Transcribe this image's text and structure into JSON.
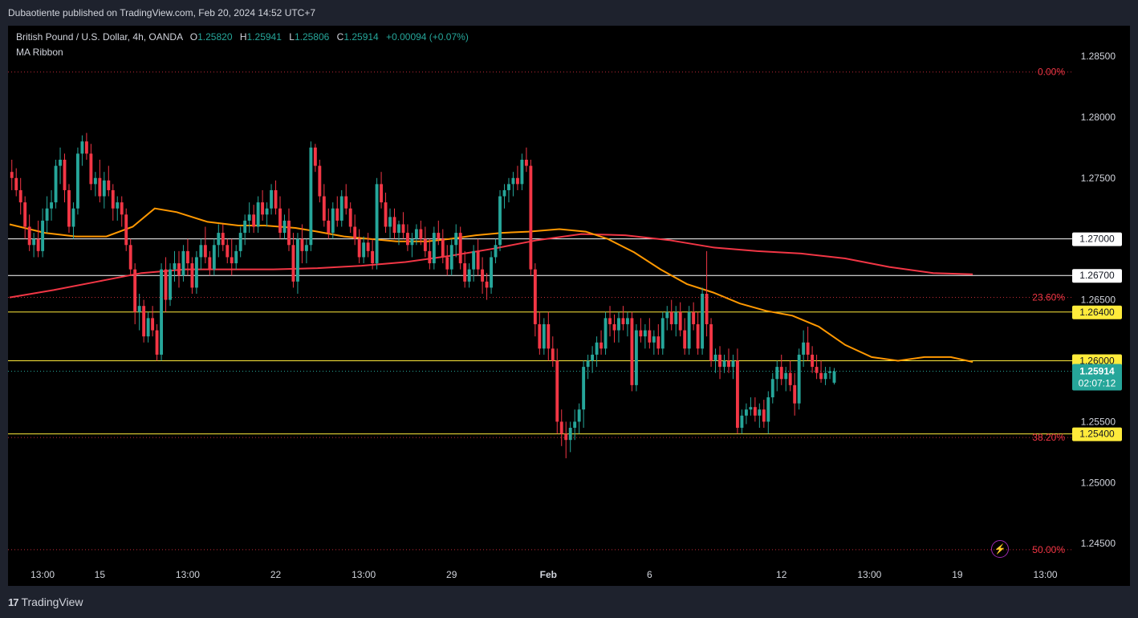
{
  "header": {
    "publisher": "Dubaotiente published on TradingView.com, Feb 20, 2024 14:52 UTC+7"
  },
  "legend": {
    "symbol": "British Pound / U.S. Dollar, 4h, OANDA",
    "open_label": "O",
    "open": "1.25820",
    "high_label": "H",
    "high": "1.25941",
    "low_label": "L",
    "low": "1.25806",
    "close_label": "C",
    "close": "1.25914",
    "change": "+0.00094 (+0.07%)",
    "indicator": "MA Ribbon"
  },
  "footer": {
    "logo": "17",
    "brand": "TradingView"
  },
  "colors": {
    "up": "#26a69a",
    "down": "#f23645",
    "ma_fast": "#ff9800",
    "ma_slow": "#f23645",
    "fib": "#f23645",
    "level_yellow": "#ffeb3b",
    "level_white": "#ffffff"
  },
  "chart_data": {
    "type": "candlestick",
    "ylim": [
      1.2435,
      1.2875
    ],
    "price_ticks": [
      "1.28500",
      "1.28000",
      "1.27500",
      "1.26500",
      "1.25500",
      "1.25000",
      "1.24500"
    ],
    "time_labels": [
      {
        "label": "13:00",
        "bar": 7
      },
      {
        "label": "15",
        "bar": 20
      },
      {
        "label": "13:00",
        "bar": 40
      },
      {
        "label": "22",
        "bar": 60
      },
      {
        "label": "13:00",
        "bar": 80
      },
      {
        "label": "29",
        "bar": 100
      },
      {
        "label": "Feb",
        "bar": 122,
        "bold": true
      },
      {
        "label": "6",
        "bar": 145
      },
      {
        "label": "12",
        "bar": 175
      },
      {
        "label": "13:00",
        "bar": 195
      },
      {
        "label": "19",
        "bar": 215
      },
      {
        "label": "13:00",
        "bar": 235
      }
    ],
    "horizontal_levels": [
      {
        "price": 1.27,
        "label": "1.27000",
        "style": "white"
      },
      {
        "price": 1.267,
        "label": "1.26700",
        "style": "white"
      },
      {
        "price": 1.264,
        "label": "1.26400",
        "style": "yellow"
      },
      {
        "price": 1.26,
        "label": "1.26000",
        "style": "yellow"
      },
      {
        "price": 1.254,
        "label": "1.25400",
        "style": "yellow"
      }
    ],
    "fib_levels": [
      {
        "price": 1.2837,
        "label": "0.00%"
      },
      {
        "price": 1.2652,
        "label": "23.60%"
      },
      {
        "price": 1.2537,
        "label": "38.20%"
      },
      {
        "price": 1.2445,
        "label": "50.00%"
      }
    ],
    "last_price": {
      "label": "1.25914",
      "countdown": "02:07:12",
      "value": 1.25914
    },
    "ma_fast": [
      [
        0,
        1.2712
      ],
      [
        8,
        1.2705
      ],
      [
        15,
        1.2702
      ],
      [
        22,
        1.2702
      ],
      [
        28,
        1.271
      ],
      [
        33,
        1.2725
      ],
      [
        38,
        1.2722
      ],
      [
        45,
        1.2714
      ],
      [
        52,
        1.2711
      ],
      [
        58,
        1.2711
      ],
      [
        65,
        1.2709
      ],
      [
        70,
        1.2706
      ],
      [
        76,
        1.2702
      ],
      [
        82,
        1.27
      ],
      [
        88,
        1.2698
      ],
      [
        95,
        1.2698
      ],
      [
        100,
        1.27
      ],
      [
        106,
        1.2703
      ],
      [
        112,
        1.2705
      ],
      [
        118,
        1.2706
      ],
      [
        125,
        1.2708
      ],
      [
        131,
        1.2706
      ],
      [
        136,
        1.27
      ],
      [
        142,
        1.2689
      ],
      [
        148,
        1.2675
      ],
      [
        154,
        1.2663
      ],
      [
        160,
        1.2656
      ],
      [
        166,
        1.2647
      ],
      [
        172,
        1.2641
      ],
      [
        178,
        1.2637
      ],
      [
        184,
        1.2628
      ],
      [
        190,
        1.2613
      ],
      [
        196,
        1.2603
      ],
      [
        202,
        1.26
      ],
      [
        208,
        1.2603
      ],
      [
        214,
        1.2603
      ],
      [
        219,
        1.2599
      ]
    ],
    "ma_slow": [
      [
        0,
        1.2652
      ],
      [
        10,
        1.2658
      ],
      [
        20,
        1.2665
      ],
      [
        30,
        1.2672
      ],
      [
        40,
        1.2675
      ],
      [
        50,
        1.2675
      ],
      [
        60,
        1.2675
      ],
      [
        70,
        1.2676
      ],
      [
        80,
        1.2678
      ],
      [
        90,
        1.2681
      ],
      [
        100,
        1.2686
      ],
      [
        110,
        1.2692
      ],
      [
        120,
        1.2699
      ],
      [
        130,
        1.2704
      ],
      [
        140,
        1.2703
      ],
      [
        150,
        1.2699
      ],
      [
        160,
        1.2693
      ],
      [
        170,
        1.269
      ],
      [
        180,
        1.2688
      ],
      [
        190,
        1.2684
      ],
      [
        200,
        1.2677
      ],
      [
        210,
        1.2672
      ],
      [
        219,
        1.2671
      ]
    ],
    "ohlc": [
      [
        1.2755,
        1.2765,
        1.274,
        1.275
      ],
      [
        1.275,
        1.2758,
        1.2735,
        1.274
      ],
      [
        1.274,
        1.275,
        1.272,
        1.273
      ],
      [
        1.273,
        1.2735,
        1.27,
        1.271
      ],
      [
        1.271,
        1.272,
        1.269,
        1.2695
      ],
      [
        1.2695,
        1.2705,
        1.2685,
        1.27
      ],
      [
        1.27,
        1.2715,
        1.2685,
        1.269
      ],
      [
        1.269,
        1.2725,
        1.2685,
        1.2715
      ],
      [
        1.2715,
        1.2735,
        1.2705,
        1.2725
      ],
      [
        1.2725,
        1.274,
        1.2715,
        1.273
      ],
      [
        1.273,
        1.2765,
        1.2725,
        1.276
      ],
      [
        1.276,
        1.2775,
        1.2745,
        1.2765
      ],
      [
        1.2765,
        1.277,
        1.273,
        1.274
      ],
      [
        1.274,
        1.2745,
        1.2705,
        1.271
      ],
      [
        1.271,
        1.273,
        1.27,
        1.2725
      ],
      [
        1.2725,
        1.2775,
        1.272,
        1.277
      ],
      [
        1.277,
        1.2785,
        1.276,
        1.278
      ],
      [
        1.278,
        1.2787,
        1.2765,
        1.277
      ],
      [
        1.277,
        1.2778,
        1.274,
        1.2745
      ],
      [
        1.2745,
        1.2755,
        1.2735,
        1.275
      ],
      [
        1.275,
        1.2765,
        1.273,
        1.2735
      ],
      [
        1.2735,
        1.2755,
        1.2725,
        1.2748
      ],
      [
        1.2748,
        1.276,
        1.2735,
        1.274
      ],
      [
        1.274,
        1.2745,
        1.2715,
        1.2725
      ],
      [
        1.2725,
        1.2735,
        1.2715,
        1.273
      ],
      [
        1.273,
        1.2735,
        1.271,
        1.272
      ],
      [
        1.272,
        1.2725,
        1.269,
        1.2695
      ],
      [
        1.2695,
        1.27,
        1.267,
        1.2675
      ],
      [
        1.2675,
        1.268,
        1.263,
        1.264
      ],
      [
        1.264,
        1.2655,
        1.2625,
        1.2645
      ],
      [
        1.2645,
        1.265,
        1.2615,
        1.262
      ],
      [
        1.262,
        1.264,
        1.2615,
        1.2635
      ],
      [
        1.2635,
        1.2645,
        1.262,
        1.2625
      ],
      [
        1.2625,
        1.263,
        1.26,
        1.2605
      ],
      [
        1.2605,
        1.268,
        1.26,
        1.2675
      ],
      [
        1.2675,
        1.2685,
        1.264,
        1.265
      ],
      [
        1.265,
        1.268,
        1.2645,
        1.2675
      ],
      [
        1.2675,
        1.269,
        1.2665,
        1.268
      ],
      [
        1.268,
        1.269,
        1.266,
        1.267
      ],
      [
        1.267,
        1.2695,
        1.2665,
        1.269
      ],
      [
        1.269,
        1.27,
        1.267,
        1.268
      ],
      [
        1.268,
        1.2685,
        1.2655,
        1.266
      ],
      [
        1.266,
        1.269,
        1.2655,
        1.2685
      ],
      [
        1.2685,
        1.27,
        1.2675,
        1.2695
      ],
      [
        1.2695,
        1.271,
        1.268,
        1.2685
      ],
      [
        1.2685,
        1.269,
        1.267,
        1.2675
      ],
      [
        1.2675,
        1.27,
        1.267,
        1.2695
      ],
      [
        1.2695,
        1.2712,
        1.2685,
        1.2705
      ],
      [
        1.2705,
        1.2712,
        1.269,
        1.2695
      ],
      [
        1.2695,
        1.27,
        1.268,
        1.2685
      ],
      [
        1.2685,
        1.27,
        1.267,
        1.268
      ],
      [
        1.268,
        1.2695,
        1.2675,
        1.269
      ],
      [
        1.269,
        1.271,
        1.2685,
        1.2705
      ],
      [
        1.2705,
        1.272,
        1.2695,
        1.2715
      ],
      [
        1.2715,
        1.273,
        1.2705,
        1.272
      ],
      [
        1.272,
        1.2728,
        1.2705,
        1.271
      ],
      [
        1.271,
        1.2735,
        1.2705,
        1.273
      ],
      [
        1.273,
        1.274,
        1.2715,
        1.272
      ],
      [
        1.272,
        1.273,
        1.271,
        1.2725
      ],
      [
        1.2725,
        1.2745,
        1.272,
        1.274
      ],
      [
        1.274,
        1.2748,
        1.272,
        1.2725
      ],
      [
        1.2725,
        1.2735,
        1.27,
        1.2705
      ],
      [
        1.2705,
        1.272,
        1.27,
        1.2715
      ],
      [
        1.2715,
        1.2725,
        1.269,
        1.2695
      ],
      [
        1.2695,
        1.2705,
        1.266,
        1.2665
      ],
      [
        1.2665,
        1.2705,
        1.2655,
        1.27
      ],
      [
        1.27,
        1.2712,
        1.268,
        1.269
      ],
      [
        1.269,
        1.27,
        1.268,
        1.2695
      ],
      [
        1.2695,
        1.278,
        1.269,
        1.2775
      ],
      [
        1.2775,
        1.2778,
        1.2755,
        1.276
      ],
      [
        1.276,
        1.2765,
        1.273,
        1.2735
      ],
      [
        1.2735,
        1.2745,
        1.271,
        1.2715
      ],
      [
        1.2715,
        1.2725,
        1.27,
        1.2705
      ],
      [
        1.2705,
        1.273,
        1.27,
        1.2725
      ],
      [
        1.2725,
        1.2735,
        1.271,
        1.2715
      ],
      [
        1.2715,
        1.274,
        1.271,
        1.2735
      ],
      [
        1.2735,
        1.2745,
        1.272,
        1.2725
      ],
      [
        1.2725,
        1.273,
        1.2705,
        1.271
      ],
      [
        1.271,
        1.272,
        1.2695,
        1.27
      ],
      [
        1.27,
        1.2708,
        1.268,
        1.2685
      ],
      [
        1.2685,
        1.2702,
        1.268,
        1.2697
      ],
      [
        1.2697,
        1.2705,
        1.2685,
        1.269
      ],
      [
        1.269,
        1.27,
        1.2675,
        1.268
      ],
      [
        1.268,
        1.275,
        1.2675,
        1.2745
      ],
      [
        1.2745,
        1.2755,
        1.2725,
        1.273
      ],
      [
        1.273,
        1.2738,
        1.2705,
        1.271
      ],
      [
        1.271,
        1.2725,
        1.27,
        1.2718
      ],
      [
        1.2718,
        1.2725,
        1.27,
        1.2705
      ],
      [
        1.2705,
        1.2715,
        1.2695,
        1.2712
      ],
      [
        1.2712,
        1.2722,
        1.27,
        1.2705
      ],
      [
        1.2705,
        1.2712,
        1.269,
        1.2695
      ],
      [
        1.2695,
        1.2705,
        1.2685,
        1.27
      ],
      [
        1.27,
        1.2712,
        1.2695,
        1.2708
      ],
      [
        1.2708,
        1.2715,
        1.2695,
        1.27
      ],
      [
        1.27,
        1.271,
        1.2685,
        1.269
      ],
      [
        1.269,
        1.27,
        1.2675,
        1.268
      ],
      [
        1.268,
        1.271,
        1.2675,
        1.2705
      ],
      [
        1.2705,
        1.2715,
        1.2695,
        1.27
      ],
      [
        1.27,
        1.2708,
        1.268,
        1.2685
      ],
      [
        1.2685,
        1.2695,
        1.267,
        1.2675
      ],
      [
        1.2675,
        1.27,
        1.267,
        1.2695
      ],
      [
        1.2695,
        1.2712,
        1.2685,
        1.2705
      ],
      [
        1.2705,
        1.271,
        1.2675,
        1.268
      ],
      [
        1.268,
        1.269,
        1.266,
        1.2665
      ],
      [
        1.2665,
        1.268,
        1.266,
        1.2675
      ],
      [
        1.2675,
        1.2695,
        1.2665,
        1.269
      ],
      [
        1.269,
        1.27,
        1.267,
        1.2675
      ],
      [
        1.2675,
        1.2685,
        1.2655,
        1.2665
      ],
      [
        1.2665,
        1.2672,
        1.265,
        1.266
      ],
      [
        1.266,
        1.269,
        1.2655,
        1.2685
      ],
      [
        1.2685,
        1.27,
        1.268,
        1.2695
      ],
      [
        1.2695,
        1.274,
        1.269,
        1.2735
      ],
      [
        1.2735,
        1.2745,
        1.2725,
        1.274
      ],
      [
        1.274,
        1.275,
        1.273,
        1.2745
      ],
      [
        1.2745,
        1.2755,
        1.2735,
        1.275
      ],
      [
        1.275,
        1.276,
        1.274,
        1.2745
      ],
      [
        1.2745,
        1.277,
        1.274,
        1.2765
      ],
      [
        1.2765,
        1.2775,
        1.2755,
        1.276
      ],
      [
        1.276,
        1.2765,
        1.267,
        1.2675
      ],
      [
        1.2675,
        1.268,
        1.262,
        1.263
      ],
      [
        1.263,
        1.264,
        1.2605,
        1.261
      ],
      [
        1.261,
        1.2635,
        1.2605,
        1.263
      ],
      [
        1.263,
        1.264,
        1.26,
        1.261
      ],
      [
        1.261,
        1.262,
        1.2595,
        1.26
      ],
      [
        1.26,
        1.261,
        1.254,
        1.255
      ],
      [
        1.255,
        1.256,
        1.253,
        1.254
      ],
      [
        1.254,
        1.255,
        1.252,
        1.2535
      ],
      [
        1.2535,
        1.255,
        1.2525,
        1.2545
      ],
      [
        1.2545,
        1.256,
        1.2535,
        1.255
      ],
      [
        1.255,
        1.2565,
        1.254,
        1.256
      ],
      [
        1.256,
        1.26,
        1.2545,
        1.2595
      ],
      [
        1.2595,
        1.2605,
        1.2585,
        1.26
      ],
      [
        1.26,
        1.2612,
        1.259,
        1.2605
      ],
      [
        1.2605,
        1.262,
        1.2595,
        1.2615
      ],
      [
        1.2615,
        1.2625,
        1.2605,
        1.261
      ],
      [
        1.261,
        1.264,
        1.2605,
        1.2635
      ],
      [
        1.2635,
        1.2645,
        1.262,
        1.263
      ],
      [
        1.263,
        1.2638,
        1.2615,
        1.2625
      ],
      [
        1.2625,
        1.264,
        1.2615,
        1.2635
      ],
      [
        1.2635,
        1.2645,
        1.2625,
        1.263
      ],
      [
        1.263,
        1.264,
        1.262,
        1.2635
      ],
      [
        1.2635,
        1.264,
        1.2575,
        1.258
      ],
      [
        1.258,
        1.263,
        1.2575,
        1.2625
      ],
      [
        1.2625,
        1.2635,
        1.2615,
        1.262
      ],
      [
        1.262,
        1.263,
        1.261,
        1.2625
      ],
      [
        1.2625,
        1.2635,
        1.261,
        1.2615
      ],
      [
        1.2615,
        1.2625,
        1.2605,
        1.262
      ],
      [
        1.262,
        1.263,
        1.2605,
        1.261
      ],
      [
        1.261,
        1.264,
        1.2605,
        1.2635
      ],
      [
        1.2635,
        1.2645,
        1.2625,
        1.264
      ],
      [
        1.264,
        1.265,
        1.2625,
        1.263
      ],
      [
        1.263,
        1.2645,
        1.262,
        1.264
      ],
      [
        1.264,
        1.2648,
        1.262,
        1.2625
      ],
      [
        1.2625,
        1.2635,
        1.2605,
        1.261
      ],
      [
        1.261,
        1.2645,
        1.2605,
        1.264
      ],
      [
        1.264,
        1.2648,
        1.2625,
        1.263
      ],
      [
        1.263,
        1.264,
        1.2605,
        1.261
      ],
      [
        1.261,
        1.266,
        1.2605,
        1.2655
      ],
      [
        1.2655,
        1.269,
        1.262,
        1.263
      ],
      [
        1.263,
        1.2635,
        1.2595,
        1.26
      ],
      [
        1.26,
        1.261,
        1.259,
        1.2605
      ],
      [
        1.2605,
        1.2612,
        1.2585,
        1.2595
      ],
      [
        1.2595,
        1.2605,
        1.259,
        1.26
      ],
      [
        1.26,
        1.261,
        1.259,
        1.2595
      ],
      [
        1.2595,
        1.2605,
        1.2585,
        1.26
      ],
      [
        1.26,
        1.261,
        1.254,
        1.2545
      ],
      [
        1.2545,
        1.256,
        1.254,
        1.2555
      ],
      [
        1.2555,
        1.2565,
        1.2548,
        1.256
      ],
      [
        1.256,
        1.257,
        1.2555,
        1.2562
      ],
      [
        1.2562,
        1.257,
        1.255,
        1.2555
      ],
      [
        1.2555,
        1.2565,
        1.2545,
        1.256
      ],
      [
        1.256,
        1.2568,
        1.2545,
        1.255
      ],
      [
        1.255,
        1.2575,
        1.254,
        1.257
      ],
      [
        1.257,
        1.259,
        1.2565,
        1.2585
      ],
      [
        1.2585,
        1.26,
        1.2575,
        1.2595
      ],
      [
        1.2595,
        1.2605,
        1.258,
        1.2585
      ],
      [
        1.2585,
        1.2595,
        1.2575,
        1.259
      ],
      [
        1.259,
        1.26,
        1.2575,
        1.258
      ],
      [
        1.258,
        1.259,
        1.2555,
        1.2565
      ],
      [
        1.2565,
        1.261,
        1.256,
        1.2605
      ],
      [
        1.2605,
        1.2625,
        1.2595,
        1.2615
      ],
      [
        1.2615,
        1.2628,
        1.26,
        1.2605
      ],
      [
        1.2605,
        1.2612,
        1.259,
        1.2595
      ],
      [
        1.2595,
        1.2605,
        1.2585,
        1.259
      ],
      [
        1.259,
        1.26,
        1.2582,
        1.2585
      ],
      [
        1.2585,
        1.2595,
        1.258,
        1.259
      ],
      [
        1.259,
        1.2595,
        1.2585,
        1.25914
      ],
      [
        1.2582,
        1.25941,
        1.25806,
        1.25914
      ]
    ]
  }
}
